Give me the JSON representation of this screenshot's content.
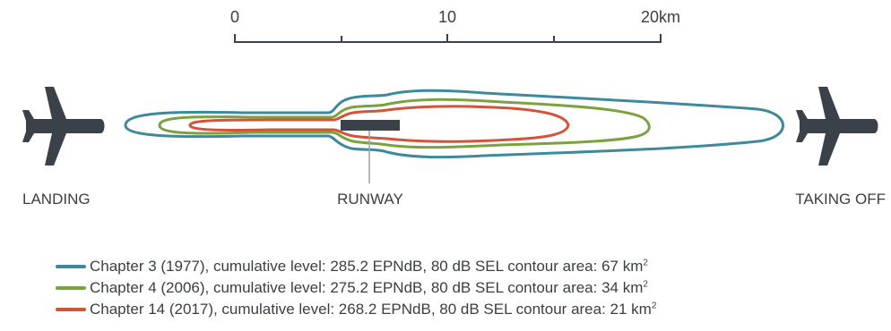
{
  "scale": {
    "ticks": [
      {
        "label": "0"
      },
      {
        "label": "10"
      },
      {
        "label": "20km"
      }
    ]
  },
  "labels": {
    "landing": "LANDING",
    "runway": "RUNWAY",
    "taking_off": "TAKING OFF"
  },
  "icons": {
    "left": "airplane-icon",
    "right": "airplane-icon"
  },
  "colors": {
    "chapter3": "#3e8a9c",
    "chapter4": "#7ba23f",
    "chapter14": "#d2553a",
    "runway": "#3b4148",
    "airplane": "#3b4148",
    "text": "#3a3f44"
  },
  "legend": [
    {
      "key": "chapter3",
      "text": "Chapter 3 (1977), cumulative level: 285.2 EPNdB, 80 dB SEL contour area: 67 km",
      "unit_sup": "2"
    },
    {
      "key": "chapter4",
      "text": "Chapter 4 (2006), cumulative level: 275.2 EPNdB, 80 dB SEL contour area: 34 km",
      "unit_sup": "2"
    },
    {
      "key": "chapter14",
      "text": "Chapter 14 (2017), cumulative level: 268.2 EPNdB, 80 dB SEL contour area: 21 km",
      "unit_sup": "2"
    }
  ]
}
